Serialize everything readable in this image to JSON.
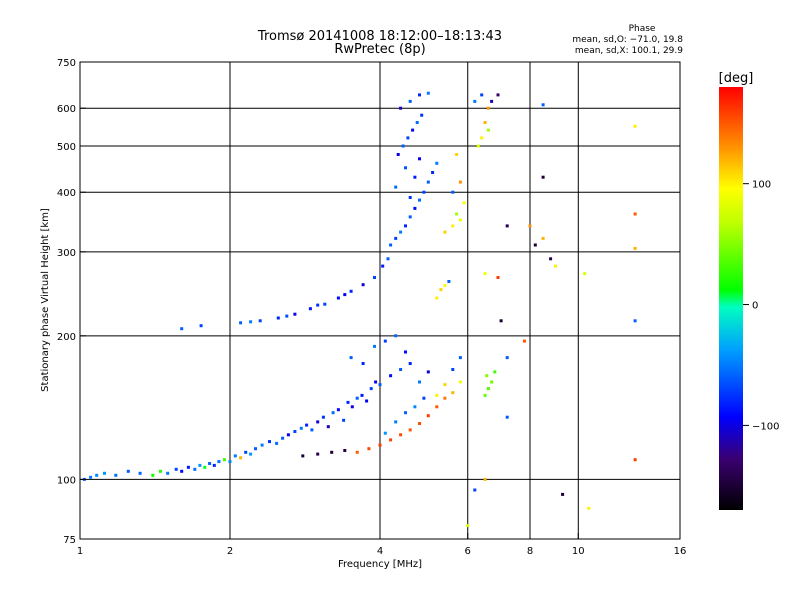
{
  "chart_data": {
    "type": "scatter",
    "title": "Tromsø 20141008 18:12:00–18:13:43",
    "subtitle": "RwPretec (8p)",
    "phase_info": {
      "heading": "Phase",
      "line_o": "mean, sd,O: −71.0, 19.8",
      "line_x": "mean, sd,X: 100.1, 29.9"
    },
    "xlabel": "Frequency [MHz]",
    "ylabel": "Stationary phase Virtual Height [km]",
    "x_scale": "log",
    "y_scale": "log",
    "xlim": [
      1,
      16
    ],
    "ylim": [
      75,
      750
    ],
    "x_ticks": [
      1,
      2,
      4,
      6,
      8,
      10,
      16
    ],
    "x_tick_labels": [
      "1",
      "2",
      "4",
      "6",
      "8",
      "10",
      "16"
    ],
    "y_ticks": [
      75,
      100,
      200,
      300,
      400,
      500,
      600,
      750
    ],
    "y_tick_labels": [
      "75",
      "100",
      "200",
      "300",
      "400",
      "500",
      "600",
      "750"
    ],
    "grid": true,
    "colorbar": {
      "label": "[deg]",
      "range": [
        -170,
        180
      ],
      "ticks": [
        -100,
        0,
        100
      ],
      "tick_labels": [
        "−100",
        "0",
        "100"
      ]
    },
    "series": [
      {
        "points": [
          [
            1.02,
            100,
            -60
          ],
          [
            1.05,
            101,
            -50
          ],
          [
            1.08,
            102,
            -45
          ],
          [
            1.12,
            103,
            -40
          ],
          [
            1.18,
            102,
            -55
          ],
          [
            1.25,
            104,
            -62
          ],
          [
            1.32,
            103,
            -58
          ],
          [
            1.4,
            102,
            15
          ],
          [
            1.45,
            104,
            20
          ],
          [
            1.5,
            103,
            -50
          ],
          [
            1.56,
            105,
            -70
          ],
          [
            1.6,
            104,
            -90
          ],
          [
            1.65,
            106,
            -85
          ],
          [
            1.7,
            105,
            -55
          ],
          [
            1.74,
            107,
            -40
          ],
          [
            1.78,
            106,
            10
          ],
          [
            1.82,
            108,
            -60
          ],
          [
            1.86,
            107,
            -80
          ],
          [
            1.9,
            109,
            -55
          ],
          [
            1.95,
            110,
            30
          ],
          [
            2.0,
            109,
            -45
          ],
          [
            2.05,
            112,
            -50
          ],
          [
            2.1,
            111,
            120
          ],
          [
            2.15,
            114,
            -70
          ],
          [
            2.2,
            113,
            -40
          ],
          [
            2.25,
            116,
            -60
          ],
          [
            2.32,
            118,
            -50
          ],
          [
            2.4,
            120,
            -75
          ],
          [
            2.48,
            119,
            -55
          ],
          [
            2.55,
            122,
            -60
          ],
          [
            2.62,
            124,
            -95
          ],
          [
            2.7,
            126,
            -70
          ],
          [
            2.78,
            128,
            -50
          ],
          [
            2.85,
            130,
            -80
          ],
          [
            2.92,
            127,
            -60
          ],
          [
            3.0,
            132,
            -100
          ],
          [
            3.08,
            135,
            -75
          ],
          [
            3.15,
            129,
            -110
          ],
          [
            3.22,
            138,
            -55
          ],
          [
            3.3,
            140,
            -90
          ],
          [
            3.38,
            133,
            -70
          ],
          [
            3.45,
            145,
            -80
          ],
          [
            3.52,
            142,
            -100
          ],
          [
            3.6,
            148,
            -60
          ],
          [
            3.68,
            150,
            -85
          ],
          [
            3.76,
            146,
            -95
          ],
          [
            3.84,
            155,
            -70
          ],
          [
            3.92,
            160,
            -100
          ],
          [
            4.0,
            158,
            -60
          ],
          [
            2.8,
            112,
            -150
          ],
          [
            3.0,
            113,
            -140
          ],
          [
            3.2,
            114,
            -150
          ],
          [
            3.4,
            115,
            -145
          ],
          [
            3.6,
            114,
            150
          ],
          [
            3.8,
            116,
            155
          ],
          [
            4.0,
            118,
            160
          ],
          [
            4.2,
            121,
            158
          ],
          [
            4.4,
            124,
            155
          ],
          [
            4.6,
            127,
            150
          ],
          [
            4.8,
            131,
            152
          ],
          [
            5.0,
            136,
            160
          ],
          [
            5.2,
            142,
            150
          ],
          [
            5.4,
            148,
            140
          ],
          [
            5.6,
            152,
            120
          ],
          [
            5.8,
            160,
            90
          ],
          [
            4.1,
            125,
            -40
          ],
          [
            4.3,
            132,
            -50
          ],
          [
            4.5,
            138,
            -60
          ],
          [
            4.7,
            142,
            -45
          ],
          [
            4.9,
            148,
            -70
          ],
          [
            4.2,
            165,
            -90
          ],
          [
            4.4,
            170,
            -60
          ],
          [
            4.6,
            175,
            -80
          ],
          [
            4.8,
            160,
            -50
          ],
          [
            5.0,
            168,
            -100
          ],
          [
            5.2,
            150,
            100
          ],
          [
            5.4,
            158,
            110
          ],
          [
            5.6,
            170,
            -70
          ],
          [
            5.8,
            180,
            -60
          ],
          [
            6.5,
            150,
            40
          ],
          [
            6.6,
            155,
            35
          ],
          [
            6.7,
            160,
            45
          ],
          [
            6.55,
            165,
            50
          ],
          [
            6.8,
            168,
            30
          ],
          [
            3.5,
            180,
            -60
          ],
          [
            3.7,
            175,
            -80
          ],
          [
            3.9,
            190,
            -50
          ],
          [
            4.1,
            195,
            -70
          ],
          [
            4.3,
            200,
            -55
          ],
          [
            4.5,
            185,
            -90
          ],
          [
            1.6,
            207,
            -60
          ],
          [
            1.75,
            210,
            -70
          ],
          [
            2.1,
            213,
            -60
          ],
          [
            2.3,
            215,
            -70
          ],
          [
            2.5,
            218,
            -80
          ],
          [
            2.7,
            222,
            -100
          ],
          [
            2.9,
            228,
            -85
          ],
          [
            3.1,
            233,
            -70
          ],
          [
            3.3,
            240,
            -90
          ],
          [
            3.5,
            248,
            -80
          ],
          [
            3.7,
            256,
            -100
          ],
          [
            3.9,
            265,
            -70
          ],
          [
            4.05,
            280,
            -85
          ],
          [
            4.15,
            290,
            -60
          ],
          [
            2.2,
            214,
            -50
          ],
          [
            2.6,
            220,
            -65
          ],
          [
            3.0,
            232,
            -75
          ],
          [
            3.4,
            244,
            -95
          ],
          [
            4.2,
            310,
            -60
          ],
          [
            4.3,
            320,
            -70
          ],
          [
            4.4,
            330,
            -50
          ],
          [
            4.5,
            340,
            -80
          ],
          [
            4.6,
            355,
            -60
          ],
          [
            4.7,
            370,
            -90
          ],
          [
            4.8,
            385,
            -55
          ],
          [
            4.9,
            400,
            -70
          ],
          [
            5.0,
            420,
            -60
          ],
          [
            5.1,
            440,
            -80
          ],
          [
            5.2,
            460,
            -50
          ],
          [
            4.35,
            480,
            -100
          ],
          [
            4.45,
            500,
            -60
          ],
          [
            4.55,
            520,
            -70
          ],
          [
            4.65,
            540,
            -90
          ],
          [
            4.75,
            560,
            -55
          ],
          [
            4.85,
            580,
            -75
          ],
          [
            4.4,
            600,
            -110
          ],
          [
            4.6,
            620,
            -60
          ],
          [
            4.8,
            640,
            -80
          ],
          [
            5.0,
            645,
            -50
          ],
          [
            4.5,
            450,
            -65
          ],
          [
            4.7,
            430,
            -85
          ],
          [
            4.3,
            410,
            -55
          ],
          [
            4.6,
            390,
            -75
          ],
          [
            4.8,
            470,
            -95
          ],
          [
            5.4,
            330,
            110
          ],
          [
            5.6,
            340,
            100
          ],
          [
            5.8,
            350,
            90
          ],
          [
            5.7,
            360,
            60
          ],
          [
            5.9,
            380,
            95
          ],
          [
            5.6,
            400,
            -60
          ],
          [
            5.8,
            420,
            130
          ],
          [
            5.7,
            480,
            110
          ],
          [
            6.3,
            500,
            80
          ],
          [
            6.4,
            520,
            100
          ],
          [
            6.6,
            540,
            60
          ],
          [
            6.5,
            560,
            120
          ],
          [
            6.6,
            600,
            130
          ],
          [
            6.7,
            620,
            -110
          ],
          [
            6.9,
            640,
            -130
          ],
          [
            6.4,
            640,
            -70
          ],
          [
            6.2,
            620,
            -50
          ],
          [
            5.2,
            240,
            100
          ],
          [
            5.3,
            250,
            110
          ],
          [
            5.4,
            255,
            95
          ],
          [
            5.5,
            260,
            -60
          ],
          [
            6.5,
            270,
            90
          ],
          [
            6.9,
            265,
            160
          ],
          [
            7.0,
            215,
            -150
          ],
          [
            7.2,
            180,
            -60
          ],
          [
            7.8,
            195,
            150
          ],
          [
            8.2,
            310,
            -150
          ],
          [
            8.5,
            320,
            120
          ],
          [
            8.8,
            290,
            -140
          ],
          [
            9.0,
            280,
            100
          ],
          [
            8.5,
            430,
            -150
          ],
          [
            10.3,
            270,
            80
          ],
          [
            13.0,
            550,
            100
          ],
          [
            13.0,
            360,
            150
          ],
          [
            13.0,
            305,
            120
          ],
          [
            13.0,
            215,
            -60
          ],
          [
            13.0,
            110,
            160
          ],
          [
            9.3,
            93,
            -150
          ],
          [
            10.5,
            87,
            100
          ],
          [
            6.0,
            80,
            80
          ],
          [
            6.2,
            95,
            -70
          ],
          [
            6.5,
            100,
            120
          ],
          [
            7.2,
            135,
            -60
          ],
          [
            8.5,
            610,
            -60
          ],
          [
            7.2,
            340,
            -140
          ],
          [
            8.0,
            340,
            130
          ]
        ]
      }
    ]
  }
}
